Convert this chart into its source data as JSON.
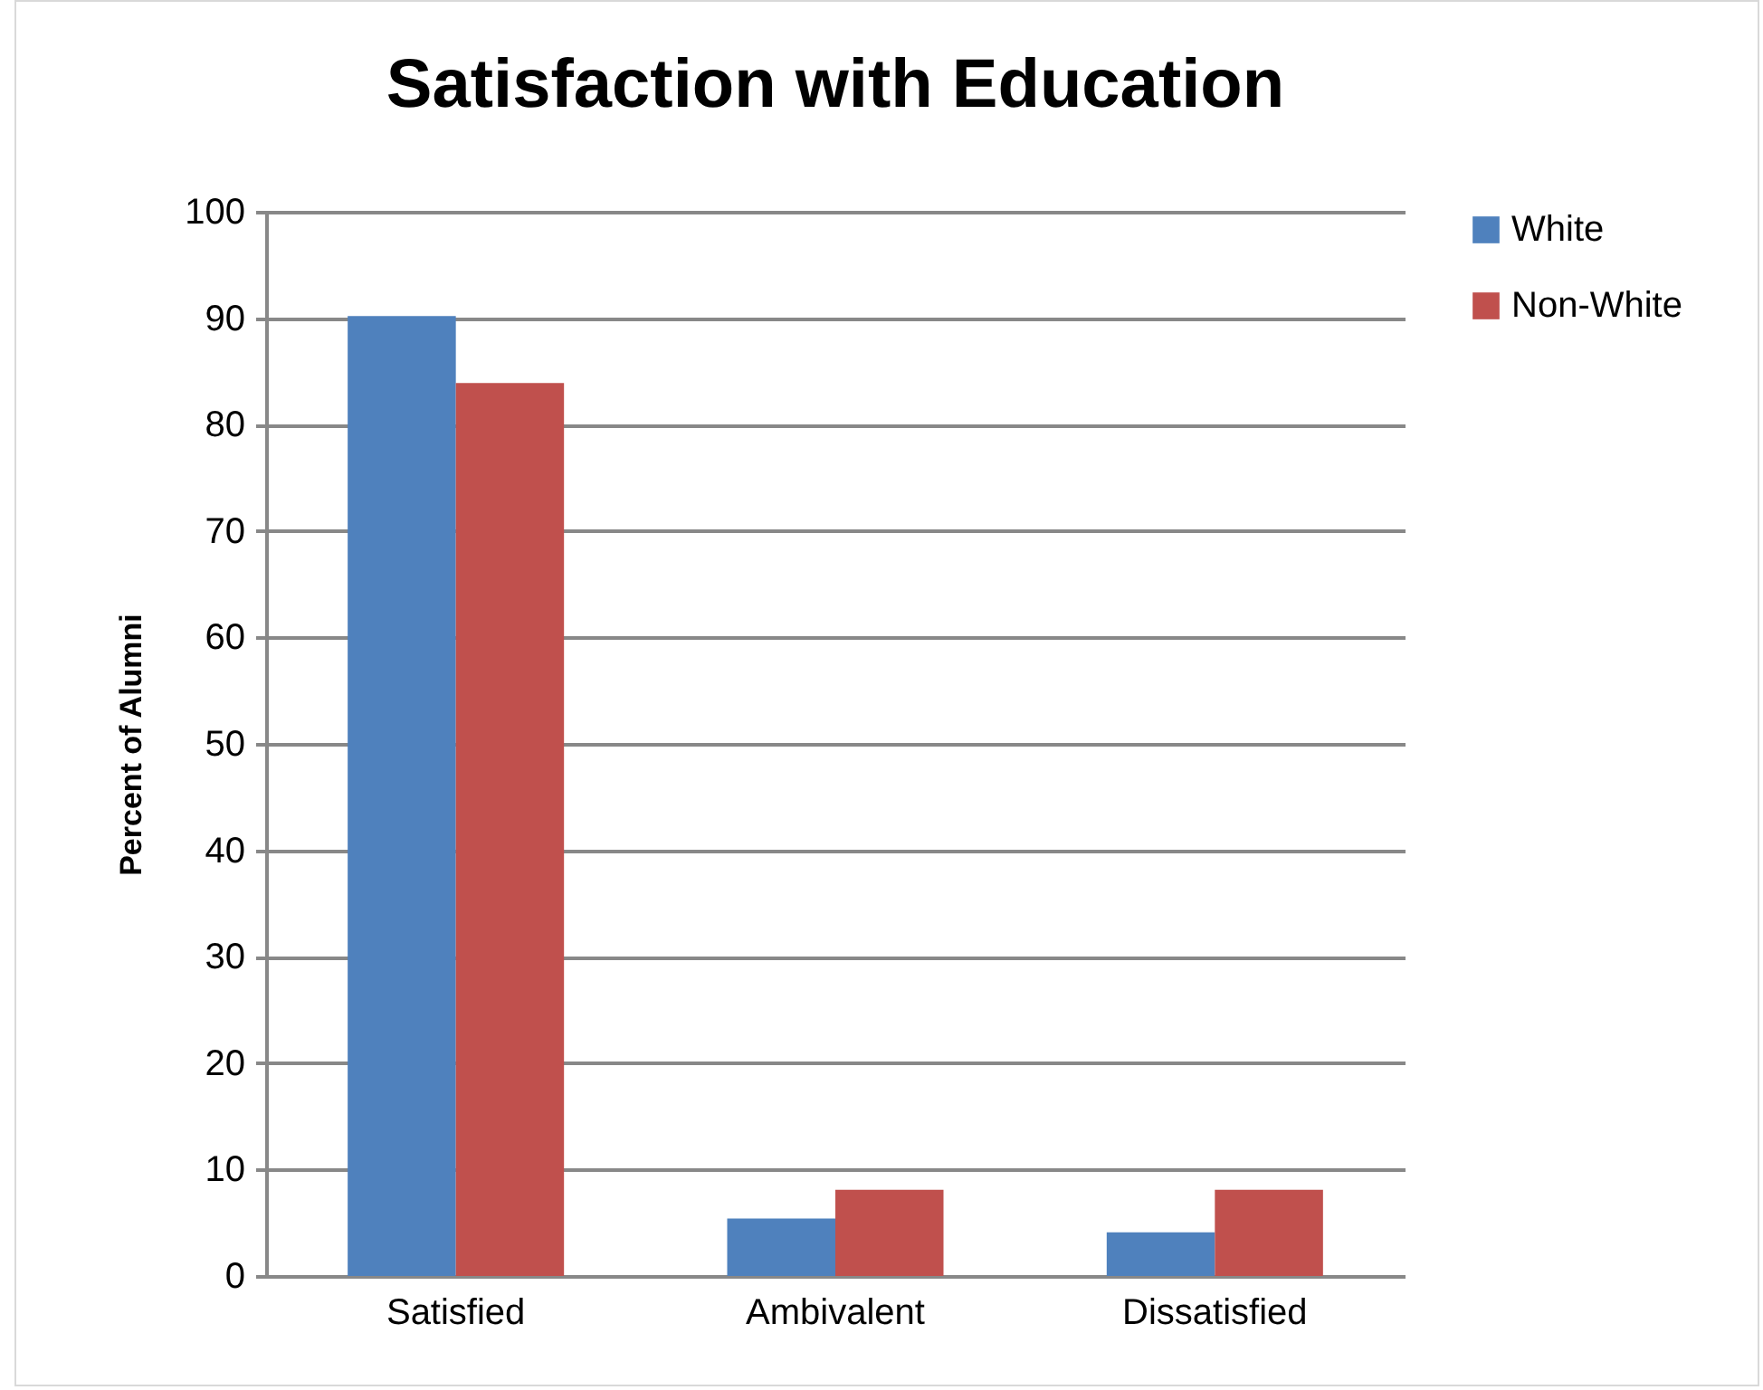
{
  "chart_data": {
    "type": "bar",
    "title": "Satisfaction with Education",
    "ylabel": "Percent of Alumni",
    "categories": [
      "Satisfied",
      "Ambivalent",
      "Dissatisfied"
    ],
    "series": [
      {
        "name": "White",
        "color": "#4f81bd",
        "values": [
          90.2,
          5.4,
          4.1
        ]
      },
      {
        "name": "Non-White",
        "color": "#c0504d",
        "values": [
          83.9,
          8.1,
          8.1
        ]
      }
    ],
    "ylim": [
      0,
      100
    ],
    "yticks": [
      0,
      10,
      20,
      30,
      40,
      50,
      60,
      70,
      80,
      90,
      100
    ],
    "grid": "y",
    "legend": "right"
  }
}
